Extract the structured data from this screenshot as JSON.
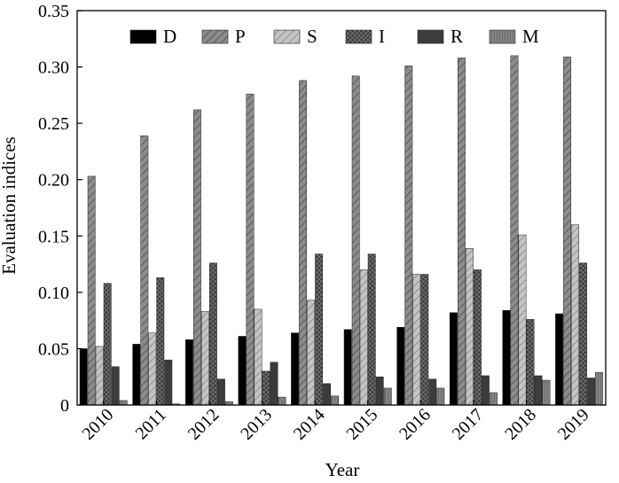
{
  "chart_data": {
    "type": "bar",
    "title": "",
    "xlabel": "Year",
    "ylabel": "Evaluation indices",
    "ylim": [
      0,
      0.35
    ],
    "yticks": [
      "0",
      "0.05",
      "0.10",
      "0.15",
      "0.20",
      "0.25",
      "0.30",
      "0.35"
    ],
    "categories": [
      "2010",
      "2011",
      "2012",
      "2013",
      "2014",
      "2015",
      "2016",
      "2017",
      "2018",
      "2019"
    ],
    "legend_position": "top",
    "grid": false,
    "series": [
      {
        "name": "D",
        "pattern": "solid-black",
        "values": [
          0.05,
          0.054,
          0.058,
          0.061,
          0.064,
          0.067,
          0.069,
          0.082,
          0.084,
          0.081
        ]
      },
      {
        "name": "P",
        "pattern": "diagonal-gray",
        "values": [
          0.203,
          0.239,
          0.262,
          0.276,
          0.288,
          0.292,
          0.301,
          0.308,
          0.31,
          0.309
        ]
      },
      {
        "name": "S",
        "pattern": "light-diagonal",
        "values": [
          0.052,
          0.064,
          0.083,
          0.085,
          0.093,
          0.12,
          0.116,
          0.139,
          0.151,
          0.16
        ]
      },
      {
        "name": "I",
        "pattern": "dark-crosshatch",
        "values": [
          0.108,
          0.113,
          0.126,
          0.03,
          0.134,
          0.134,
          0.116,
          0.12,
          0.076,
          0.126
        ]
      },
      {
        "name": "R",
        "pattern": "dark-gray",
        "values": [
          0.034,
          0.04,
          0.023,
          0.038,
          0.019,
          0.025,
          0.023,
          0.026,
          0.026,
          0.024
        ]
      },
      {
        "name": "M",
        "pattern": "gray-vertical",
        "values": [
          0.004,
          0.001,
          0.003,
          0.007,
          0.008,
          0.015,
          0.015,
          0.011,
          0.022,
          0.029
        ]
      }
    ]
  }
}
